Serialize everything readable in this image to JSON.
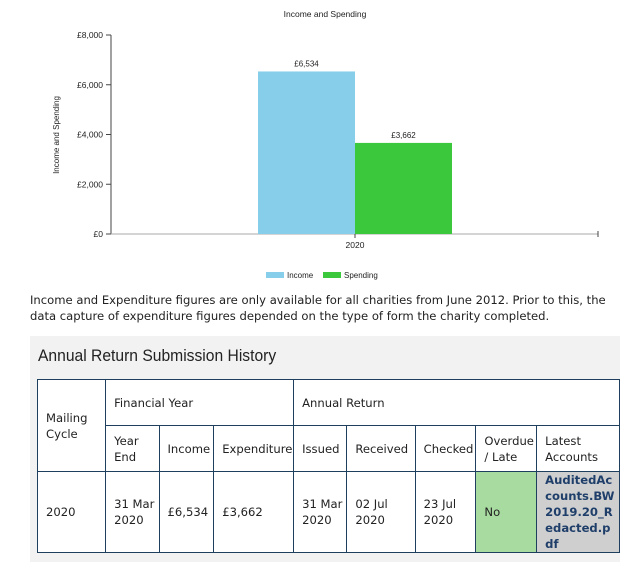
{
  "chart_data": {
    "type": "bar",
    "title": "Income and Spending",
    "categories": [
      "2020"
    ],
    "series": [
      {
        "name": "Income",
        "values": [
          6534
        ],
        "color": "#87ceeb",
        "label": "£6,534"
      },
      {
        "name": "Spending",
        "values": [
          3662
        ],
        "color": "#3cc83c",
        "label": "£3,662"
      }
    ],
    "ylabel": "Income and Spending",
    "xlabel": "",
    "ylim": [
      0,
      8000
    ],
    "yticks": [
      0,
      2000,
      4000,
      6000,
      8000
    ],
    "ytick_labels": [
      "£0",
      "£2,000",
      "£4,000",
      "£6,000",
      "£8,000"
    ],
    "grid": false,
    "legend": "bottom"
  },
  "note": "Income and Expenditure figures are only available for all charities from June 2012. Prior to this, the data capture of expenditure figures depended on the type of form the charity completed.",
  "history": {
    "title": "Annual Return Submission History",
    "headers": {
      "mailing_cycle": "Mailing Cycle",
      "financial_year": "Financial Year",
      "annual_return": "Annual Return",
      "year_end": "Year End",
      "income": "Income",
      "expenditure": "Expenditure",
      "issued": "Issued",
      "received": "Received",
      "checked": "Checked",
      "overdue": "Overdue / Late",
      "latest_accounts": "Latest Accounts"
    },
    "row": {
      "mailing_cycle": "2020",
      "year_end": "31 Mar 2020",
      "income": "£6,534",
      "expenditure": "£3,662",
      "issued": "31 Mar 2020",
      "received": "02 Jul 2020",
      "checked": "23 Jul 2020",
      "overdue": "No",
      "accounts_link": "AuditedAccounts.BW2019.20_Redacted.pdf"
    }
  }
}
